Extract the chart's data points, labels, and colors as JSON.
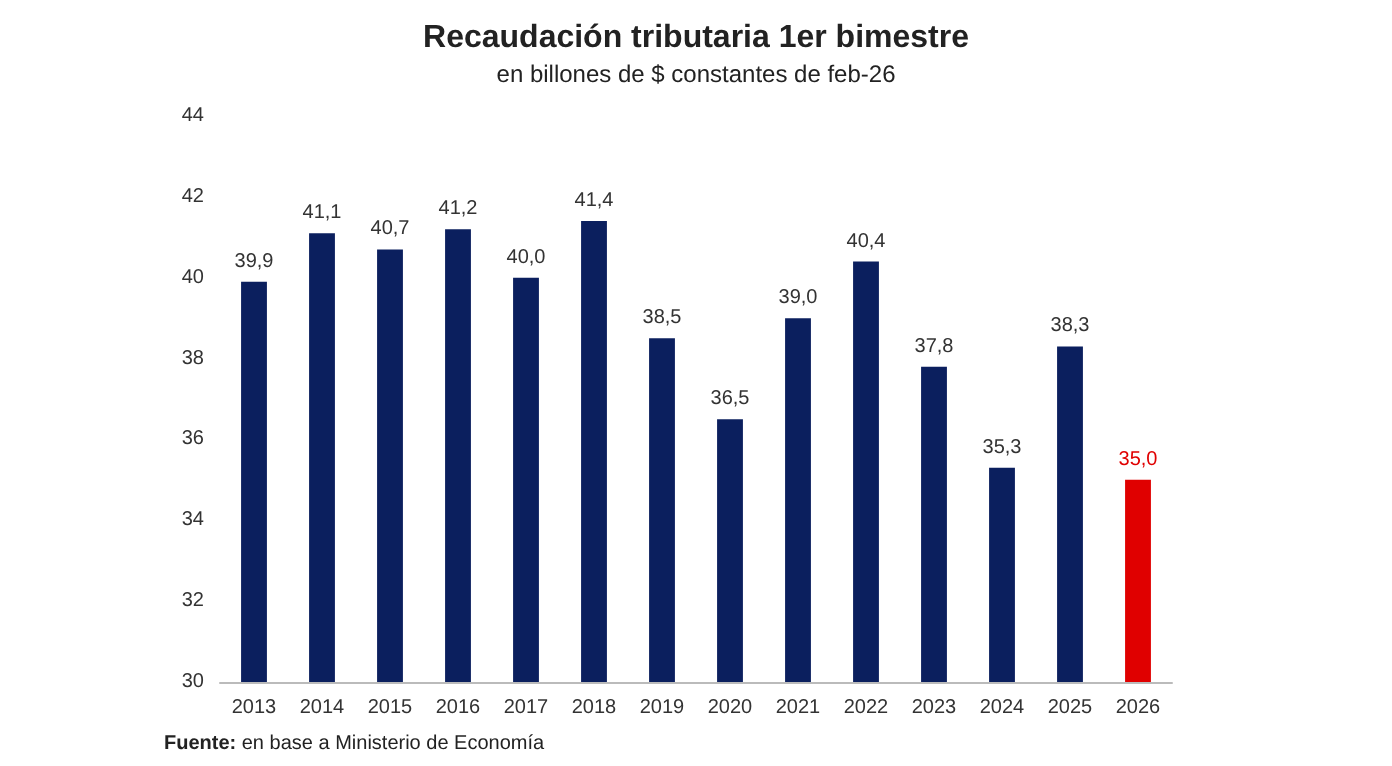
{
  "chart_data": {
    "type": "bar",
    "title": "Recaudación tributaria 1er bimestre",
    "subtitle": "en billones de $ constantes de feb-26",
    "categories": [
      "2013",
      "2014",
      "2015",
      "2016",
      "2017",
      "2018",
      "2019",
      "2020",
      "2021",
      "2022",
      "2023",
      "2024",
      "2025",
      "2026"
    ],
    "values": [
      39.9,
      41.1,
      40.7,
      41.2,
      40.0,
      41.4,
      38.5,
      36.5,
      39.0,
      40.4,
      37.8,
      35.3,
      38.3,
      35.0
    ],
    "value_labels": [
      "39,9",
      "41,1",
      "40,7",
      "41,2",
      "40,0",
      "41,4",
      "38,5",
      "36,5",
      "39,0",
      "40,4",
      "37,8",
      "35,3",
      "38,3",
      "35,0"
    ],
    "colors": [
      "#0b1f5e",
      "#0b1f5e",
      "#0b1f5e",
      "#0b1f5e",
      "#0b1f5e",
      "#0b1f5e",
      "#0b1f5e",
      "#0b1f5e",
      "#0b1f5e",
      "#0b1f5e",
      "#0b1f5e",
      "#0b1f5e",
      "#0b1f5e",
      "#e00000"
    ],
    "ylim": [
      30,
      44
    ],
    "yticks": [
      30,
      32,
      34,
      36,
      38,
      40,
      42,
      44
    ],
    "grid": false,
    "annotations": [
      "Fuente: en base a Ministerio de Economía"
    ]
  }
}
